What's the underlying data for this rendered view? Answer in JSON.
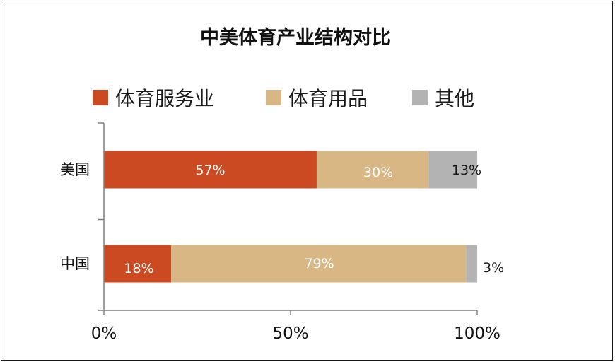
{
  "chart_data": {
    "type": "bar",
    "orientation": "horizontal",
    "stacked": true,
    "title": "中美体育产业结构对比",
    "categories": [
      "美国",
      "中国"
    ],
    "series": [
      {
        "name": "体育服务业",
        "values": [
          57,
          18
        ],
        "labels": [
          "57%",
          "18%"
        ],
        "color": "#cc4a21",
        "label_color": "#ffffff"
      },
      {
        "name": "体育用品",
        "values": [
          30,
          79
        ],
        "labels": [
          "30%",
          "79%"
        ],
        "color": "#d9b784",
        "label_color": "#ffffff"
      },
      {
        "name": "其他",
        "values": [
          13,
          3
        ],
        "labels": [
          "13%",
          "3%"
        ],
        "color": "#b3b3b3",
        "label_color": "#1a1a1a"
      }
    ],
    "xlim": [
      0,
      100
    ],
    "x_ticks": [
      0,
      50,
      100
    ],
    "x_tick_labels": [
      "0%",
      "50%",
      "100%"
    ],
    "xlabel": "",
    "ylabel": "",
    "legend": "top",
    "grid": false,
    "axis_color": "#7f7f7f"
  }
}
